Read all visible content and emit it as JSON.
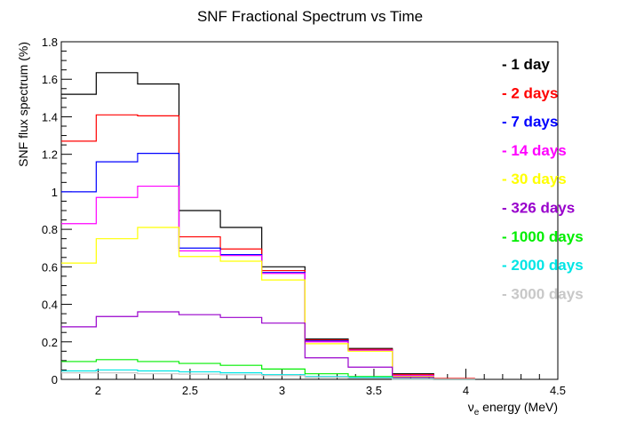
{
  "chart_data": {
    "type": "line",
    "title": "SNF Fractional Spectrum vs Time",
    "xlabel": "ν",
    "xlabel_sub": "e",
    "xlabel_rest": " energy (MeV)",
    "ylabel": "SNF flux spectrum (%)",
    "xlim": [
      1.8,
      4.5
    ],
    "ylim": [
      0,
      1.8
    ],
    "x_ticks": [
      2,
      2.5,
      3,
      3.5,
      4,
      4.5
    ],
    "x_tick_labels": [
      "2",
      "2.5",
      "3",
      "3.5",
      "4",
      "4.5"
    ],
    "y_ticks": [
      0,
      0.2,
      0.4,
      0.6,
      0.8,
      1,
      1.2,
      1.4,
      1.6,
      1.8
    ],
    "y_tick_labels": [
      "0",
      "0.2",
      "0.4",
      "0.6",
      "0.8",
      "1",
      "1.2",
      "1.4",
      "1.6",
      "1.8"
    ],
    "grid": false,
    "legend_position": "right",
    "bin_edges": [
      1.8,
      1.99,
      2.215,
      2.44,
      2.665,
      2.89,
      3.125,
      3.36,
      3.6,
      3.825,
      4.05
    ],
    "series": [
      {
        "name": "- 1 day",
        "color": "#000000",
        "values": [
          1.52,
          1.635,
          1.575,
          0.9,
          0.81,
          0.6,
          0.215,
          0.165,
          0.03,
          0.0
        ]
      },
      {
        "name": "- 2 days",
        "color": "#ff0000",
        "values": [
          1.27,
          1.41,
          1.405,
          0.76,
          0.695,
          0.58,
          0.21,
          0.16,
          0.025,
          0.005
        ]
      },
      {
        "name": "- 7 days",
        "color": "#0000ff",
        "values": [
          1.0,
          1.16,
          1.205,
          0.7,
          0.665,
          0.57,
          0.205,
          0.155,
          0.02,
          0.0
        ]
      },
      {
        "name": "- 14 days",
        "color": "#ff00ff",
        "values": [
          0.83,
          0.97,
          1.03,
          0.685,
          0.66,
          0.565,
          0.2,
          0.155,
          0.02,
          0.0
        ]
      },
      {
        "name": "- 30 days",
        "color": "#ffff00",
        "values": [
          0.62,
          0.75,
          0.81,
          0.655,
          0.63,
          0.53,
          0.19,
          0.15,
          0.015,
          0.0
        ]
      },
      {
        "name": "- 326 days",
        "color": "#9900cc",
        "values": [
          0.28,
          0.335,
          0.36,
          0.345,
          0.33,
          0.3,
          0.115,
          0.065,
          0.01,
          0.0
        ]
      },
      {
        "name": "- 1000 days",
        "color": "#00ee00",
        "values": [
          0.095,
          0.105,
          0.095,
          0.085,
          0.075,
          0.055,
          0.03,
          0.015,
          0.003,
          0.0
        ]
      },
      {
        "name": "- 2000 days",
        "color": "#00e5e5",
        "values": [
          0.045,
          0.05,
          0.045,
          0.04,
          0.035,
          0.025,
          0.015,
          0.01,
          0.002,
          0.0
        ]
      },
      {
        "name": "- 3000 days",
        "color": "#c8c8c8",
        "values": [
          0.035,
          0.035,
          0.03,
          0.028,
          0.025,
          0.02,
          0.01,
          0.005,
          0.001,
          0.0
        ]
      }
    ]
  }
}
